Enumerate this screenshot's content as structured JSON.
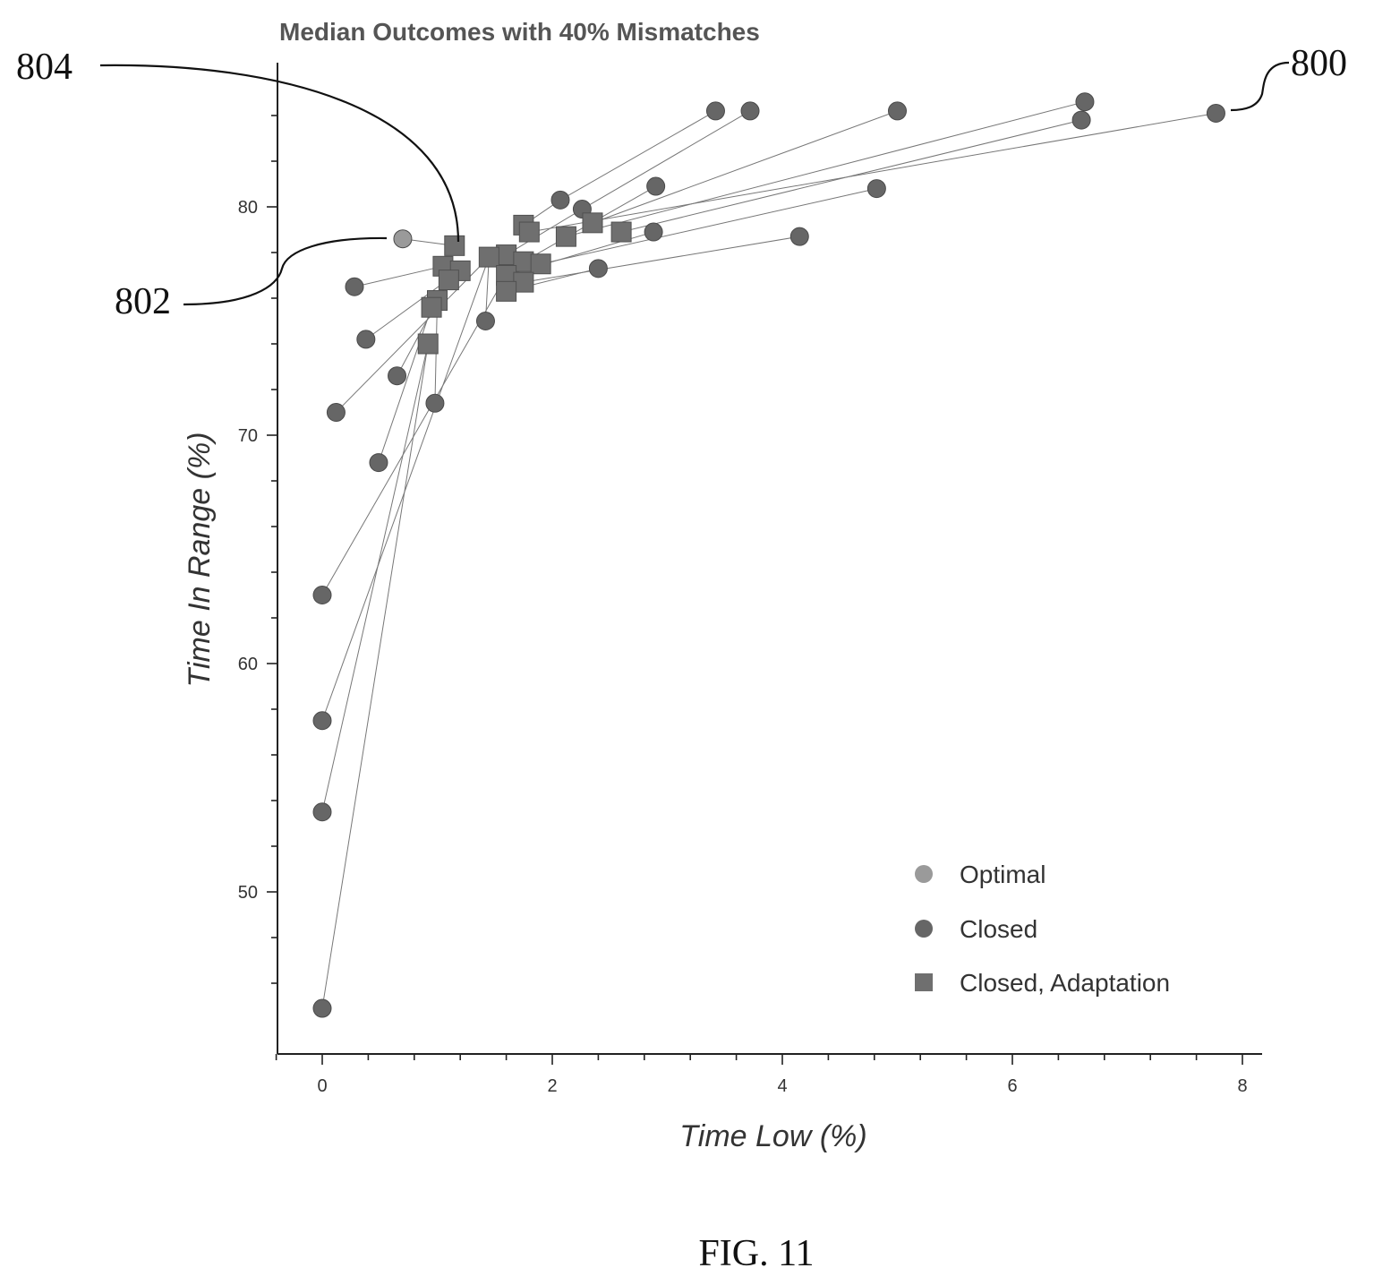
{
  "chart_data": {
    "type": "scatter",
    "title": "Median Outcomes with 40% Mismatches",
    "xlabel": "Time Low (%)",
    "ylabel": "Time In Range (%)",
    "xlim": [
      -0.4,
      8.2
    ],
    "ylim": [
      44,
      85
    ],
    "x_ticks": [
      0,
      2,
      4,
      6,
      8
    ],
    "y_ticks": [
      50,
      60,
      70,
      80
    ],
    "grid": false,
    "legend_position": "bottom-right",
    "series": [
      {
        "name": "Optimal",
        "marker": "circle",
        "color": "#9a9a9a",
        "points": [
          [
            0.7,
            78.6
          ]
        ]
      },
      {
        "name": "Closed",
        "marker": "circle",
        "color": "#666666",
        "points": [
          [
            3.42,
            84.2
          ],
          [
            3.72,
            84.2
          ],
          [
            5.0,
            84.2
          ],
          [
            6.63,
            84.6
          ],
          [
            6.6,
            83.8
          ],
          [
            7.77,
            84.1
          ],
          [
            2.07,
            80.3
          ],
          [
            2.26,
            79.9
          ],
          [
            2.9,
            80.9
          ],
          [
            4.82,
            80.8
          ],
          [
            2.88,
            78.9
          ],
          [
            4.15,
            78.7
          ],
          [
            2.4,
            77.3
          ],
          [
            1.42,
            75.0
          ],
          [
            0.28,
            76.5
          ],
          [
            0.38,
            74.2
          ],
          [
            0.65,
            72.6
          ],
          [
            0.12,
            71.0
          ],
          [
            0.98,
            71.4
          ],
          [
            0.49,
            68.8
          ],
          [
            0.0,
            63.0
          ],
          [
            0.0,
            57.5
          ],
          [
            0.0,
            53.5
          ],
          [
            0.0,
            44.9
          ]
        ]
      },
      {
        "name": "Closed, Adaptation",
        "marker": "square",
        "color": "#6f6f6f",
        "points": [
          [
            1.75,
            79.2
          ],
          [
            1.8,
            78.9
          ],
          [
            2.12,
            78.7
          ],
          [
            2.35,
            79.3
          ],
          [
            2.6,
            78.9
          ],
          [
            1.6,
            77.9
          ],
          [
            1.15,
            78.3
          ],
          [
            1.45,
            77.8
          ],
          [
            1.75,
            77.6
          ],
          [
            1.9,
            77.5
          ],
          [
            1.05,
            77.4
          ],
          [
            1.2,
            77.2
          ],
          [
            1.6,
            77.0
          ],
          [
            1.75,
            76.7
          ],
          [
            1.1,
            76.8
          ],
          [
            1.6,
            76.3
          ],
          [
            1.0,
            75.9
          ],
          [
            0.95,
            75.6
          ],
          [
            0.92,
            74.0
          ]
        ]
      }
    ],
    "connections": [
      [
        [
          3.42,
          84.2
        ],
        [
          2.07,
          80.3
        ]
      ],
      [
        [
          3.72,
          84.2
        ],
        [
          2.26,
          79.9
        ]
      ],
      [
        [
          5.0,
          84.2
        ],
        [
          2.35,
          79.3
        ]
      ],
      [
        [
          6.63,
          84.6
        ],
        [
          2.12,
          78.7
        ]
      ],
      [
        [
          6.6,
          83.8
        ],
        [
          2.6,
          78.9
        ]
      ],
      [
        [
          7.77,
          84.1
        ],
        [
          1.8,
          78.9
        ]
      ],
      [
        [
          2.07,
          80.3
        ],
        [
          1.75,
          79.2
        ]
      ],
      [
        [
          2.26,
          79.9
        ],
        [
          1.6,
          77.9
        ]
      ],
      [
        [
          2.9,
          80.9
        ],
        [
          1.75,
          77.6
        ]
      ],
      [
        [
          4.82,
          80.8
        ],
        [
          1.9,
          77.5
        ]
      ],
      [
        [
          2.88,
          78.9
        ],
        [
          1.6,
          77.0
        ]
      ],
      [
        [
          4.15,
          78.7
        ],
        [
          1.75,
          76.7
        ]
      ],
      [
        [
          2.4,
          77.3
        ],
        [
          1.6,
          76.3
        ]
      ],
      [
        [
          0.7,
          78.6
        ],
        [
          1.15,
          78.3
        ]
      ],
      [
        [
          0.28,
          76.5
        ],
        [
          1.05,
          77.4
        ]
      ],
      [
        [
          0.38,
          74.2
        ],
        [
          1.2,
          77.2
        ]
      ],
      [
        [
          0.65,
          72.6
        ],
        [
          1.1,
          76.8
        ]
      ],
      [
        [
          0.12,
          71.0
        ],
        [
          1.45,
          77.8
        ]
      ],
      [
        [
          0.98,
          71.4
        ],
        [
          1.0,
          75.9
        ]
      ],
      [
        [
          1.42,
          75.0
        ],
        [
          1.45,
          77.8
        ]
      ],
      [
        [
          0.49,
          68.8
        ],
        [
          0.95,
          75.6
        ]
      ],
      [
        [
          0.0,
          63.0
        ],
        [
          1.6,
          77.0
        ]
      ],
      [
        [
          0.0,
          57.5
        ],
        [
          1.45,
          77.8
        ]
      ],
      [
        [
          0.0,
          53.5
        ],
        [
          0.92,
          74.0
        ]
      ],
      [
        [
          0.0,
          44.9
        ],
        [
          0.92,
          74.0
        ]
      ]
    ],
    "reference_labels": [
      "800",
      "802",
      "804"
    ]
  },
  "caption": "FIG. 11"
}
